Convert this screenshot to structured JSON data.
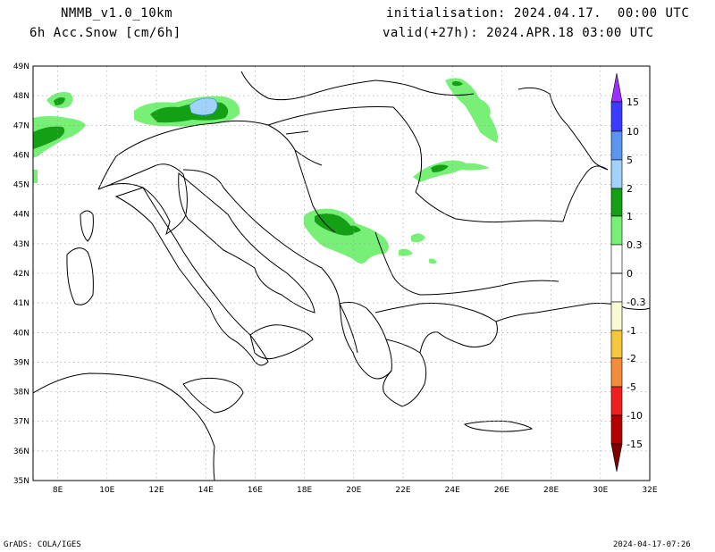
{
  "header": {
    "model": "NMMB_v1.0_10km",
    "field": "6h Acc.Snow [cm/6h]",
    "init": "initialisation: 2024.04.17.  00:00 UTC",
    "valid": "valid(+27h): 2024.APR.18 03:00 UTC"
  },
  "footer": {
    "left": "GrADS: COLA/IGES",
    "right": "2024-04-17-07:26"
  },
  "axes": {
    "lon_labels": [
      "8E",
      "10E",
      "12E",
      "14E",
      "16E",
      "18E",
      "20E",
      "22E",
      "24E",
      "26E",
      "28E",
      "30E",
      "32E"
    ],
    "lat_labels": [
      "49N",
      "48N",
      "47N",
      "46N",
      "45N",
      "44N",
      "43N",
      "42N",
      "41N",
      "40N",
      "39N",
      "38N",
      "37N",
      "36N",
      "35N"
    ],
    "lon_range": [
      7,
      32
    ],
    "lat_range": [
      35,
      49
    ]
  },
  "colorbar": {
    "labels": [
      "15",
      "10",
      "5",
      "2",
      "1",
      "0.3",
      "0",
      "-0.3",
      "-1",
      "-2",
      "-5",
      "-10",
      "-15"
    ],
    "colors": [
      "#9b30ff",
      "#3c3cff",
      "#5a96f0",
      "#a0d2fa",
      "#14a014",
      "#78f078",
      "#ffffff",
      "#ffffff",
      "#fafad2",
      "#f5c83c",
      "#f58c3c",
      "#f01e1e",
      "#b40000",
      "#800000"
    ]
  },
  "map": {
    "areas": [
      {
        "name": "snow-alps-west",
        "level": "0.3-1"
      },
      {
        "name": "snow-alps-west-core",
        "level": "1-2"
      },
      {
        "name": "snow-austria",
        "level": "0.3-1"
      },
      {
        "name": "snow-austria-core",
        "level": "1-2"
      },
      {
        "name": "snow-austria-peak",
        "level": "2-5"
      },
      {
        "name": "snow-carpathians-north",
        "level": "0.3-1"
      },
      {
        "name": "snow-carpathians-south",
        "level": "0.3-1"
      },
      {
        "name": "snow-balkans",
        "level": "0.3-1"
      },
      {
        "name": "snow-balkans-core",
        "level": "1-2"
      }
    ]
  }
}
